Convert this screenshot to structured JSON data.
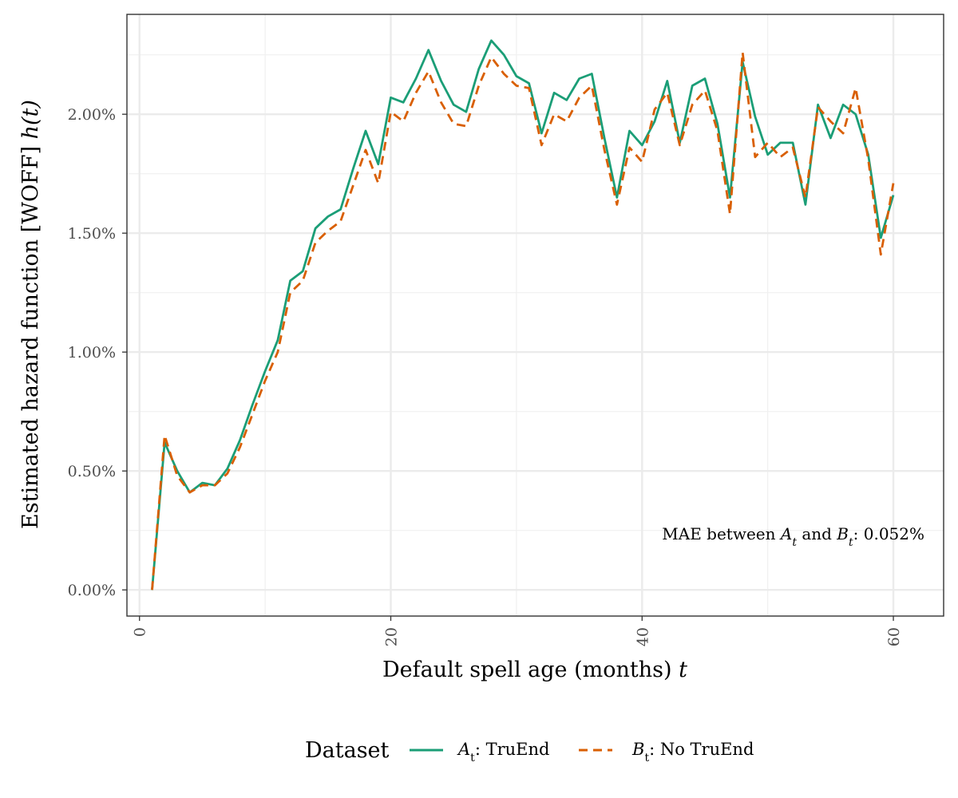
{
  "chart_data": {
    "type": "line",
    "xlabel": {
      "text": "Default spell age (months) ",
      "var": "t"
    },
    "ylabel": {
      "text": "Estimated hazard function [WOFF] ",
      "fn": "h(t)"
    },
    "xlim": [
      -1,
      64
    ],
    "ylim": [
      -0.11,
      2.42
    ],
    "x_ticks": [
      0,
      20,
      40,
      60
    ],
    "x_tick_labels": [
      "0",
      "20",
      "40",
      "60"
    ],
    "y_ticks": [
      0,
      0.5,
      1.0,
      1.5,
      2.0
    ],
    "y_tick_labels": [
      "0.00%",
      "0.50%",
      "1.00%",
      "1.50%",
      "2.00%"
    ],
    "grid": true,
    "legend_position": "bottom",
    "legend_title": "Dataset",
    "annotation": {
      "prefix": "MAE between ",
      "a": "A",
      "sub": "t",
      "mid": " and ",
      "b": "B",
      "suffix": ": 0.052%"
    },
    "series": [
      {
        "name": "At: TruEnd",
        "legend": {
          "letter": "A",
          "sub": "t",
          "text": ": TruEnd"
        },
        "color": "#1b9e77",
        "dash": "solid",
        "x": [
          1,
          2,
          3,
          4,
          5,
          6,
          7,
          8,
          9,
          10,
          11,
          12,
          13,
          14,
          15,
          16,
          17,
          18,
          19,
          20,
          21,
          22,
          23,
          24,
          25,
          26,
          27,
          28,
          29,
          30,
          31,
          32,
          33,
          34,
          35,
          36,
          37,
          38,
          39,
          40,
          41,
          42,
          43,
          44,
          45,
          46,
          47,
          48,
          49,
          50,
          51,
          52,
          53,
          54,
          55,
          56,
          57,
          58,
          59,
          60
        ],
        "values": [
          0.0,
          0.62,
          0.5,
          0.41,
          0.45,
          0.44,
          0.51,
          0.63,
          0.78,
          0.92,
          1.05,
          1.3,
          1.34,
          1.52,
          1.57,
          1.6,
          1.77,
          1.93,
          1.79,
          2.07,
          2.05,
          2.15,
          2.27,
          2.14,
          2.04,
          2.01,
          2.19,
          2.31,
          2.25,
          2.16,
          2.13,
          1.92,
          2.09,
          2.06,
          2.15,
          2.17,
          1.9,
          1.65,
          1.93,
          1.87,
          1.97,
          2.14,
          1.88,
          2.12,
          2.15,
          1.96,
          1.65,
          2.22,
          1.99,
          1.83,
          1.88,
          1.88,
          1.62,
          2.04,
          1.9,
          2.04,
          2.0,
          1.83,
          1.48,
          1.66
        ]
      },
      {
        "name": "Bt: No TruEnd",
        "legend": {
          "letter": "B",
          "sub": "t",
          "text": ": No TruEnd"
        },
        "color": "#d95f02",
        "dash": "dashed",
        "x": [
          1,
          2,
          3,
          4,
          5,
          6,
          7,
          8,
          9,
          10,
          11,
          12,
          13,
          14,
          15,
          16,
          17,
          18,
          19,
          20,
          21,
          22,
          23,
          24,
          25,
          26,
          27,
          28,
          29,
          30,
          31,
          32,
          33,
          34,
          35,
          36,
          37,
          38,
          39,
          40,
          41,
          42,
          43,
          44,
          45,
          46,
          47,
          48,
          49,
          50,
          51,
          52,
          53,
          54,
          55,
          56,
          57,
          58,
          59,
          60
        ],
        "values": [
          0.0,
          0.65,
          0.48,
          0.41,
          0.44,
          0.44,
          0.49,
          0.6,
          0.74,
          0.88,
          1.0,
          1.25,
          1.3,
          1.46,
          1.51,
          1.55,
          1.7,
          1.85,
          1.71,
          2.01,
          1.97,
          2.09,
          2.18,
          2.05,
          1.96,
          1.95,
          2.12,
          2.24,
          2.17,
          2.12,
          2.11,
          1.87,
          2.0,
          1.97,
          2.07,
          2.12,
          1.85,
          1.62,
          1.86,
          1.8,
          2.02,
          2.09,
          1.87,
          2.04,
          2.1,
          1.93,
          1.58,
          2.26,
          1.82,
          1.88,
          1.82,
          1.86,
          1.65,
          2.03,
          1.97,
          1.92,
          2.11,
          1.81,
          1.41,
          1.71
        ]
      }
    ]
  }
}
